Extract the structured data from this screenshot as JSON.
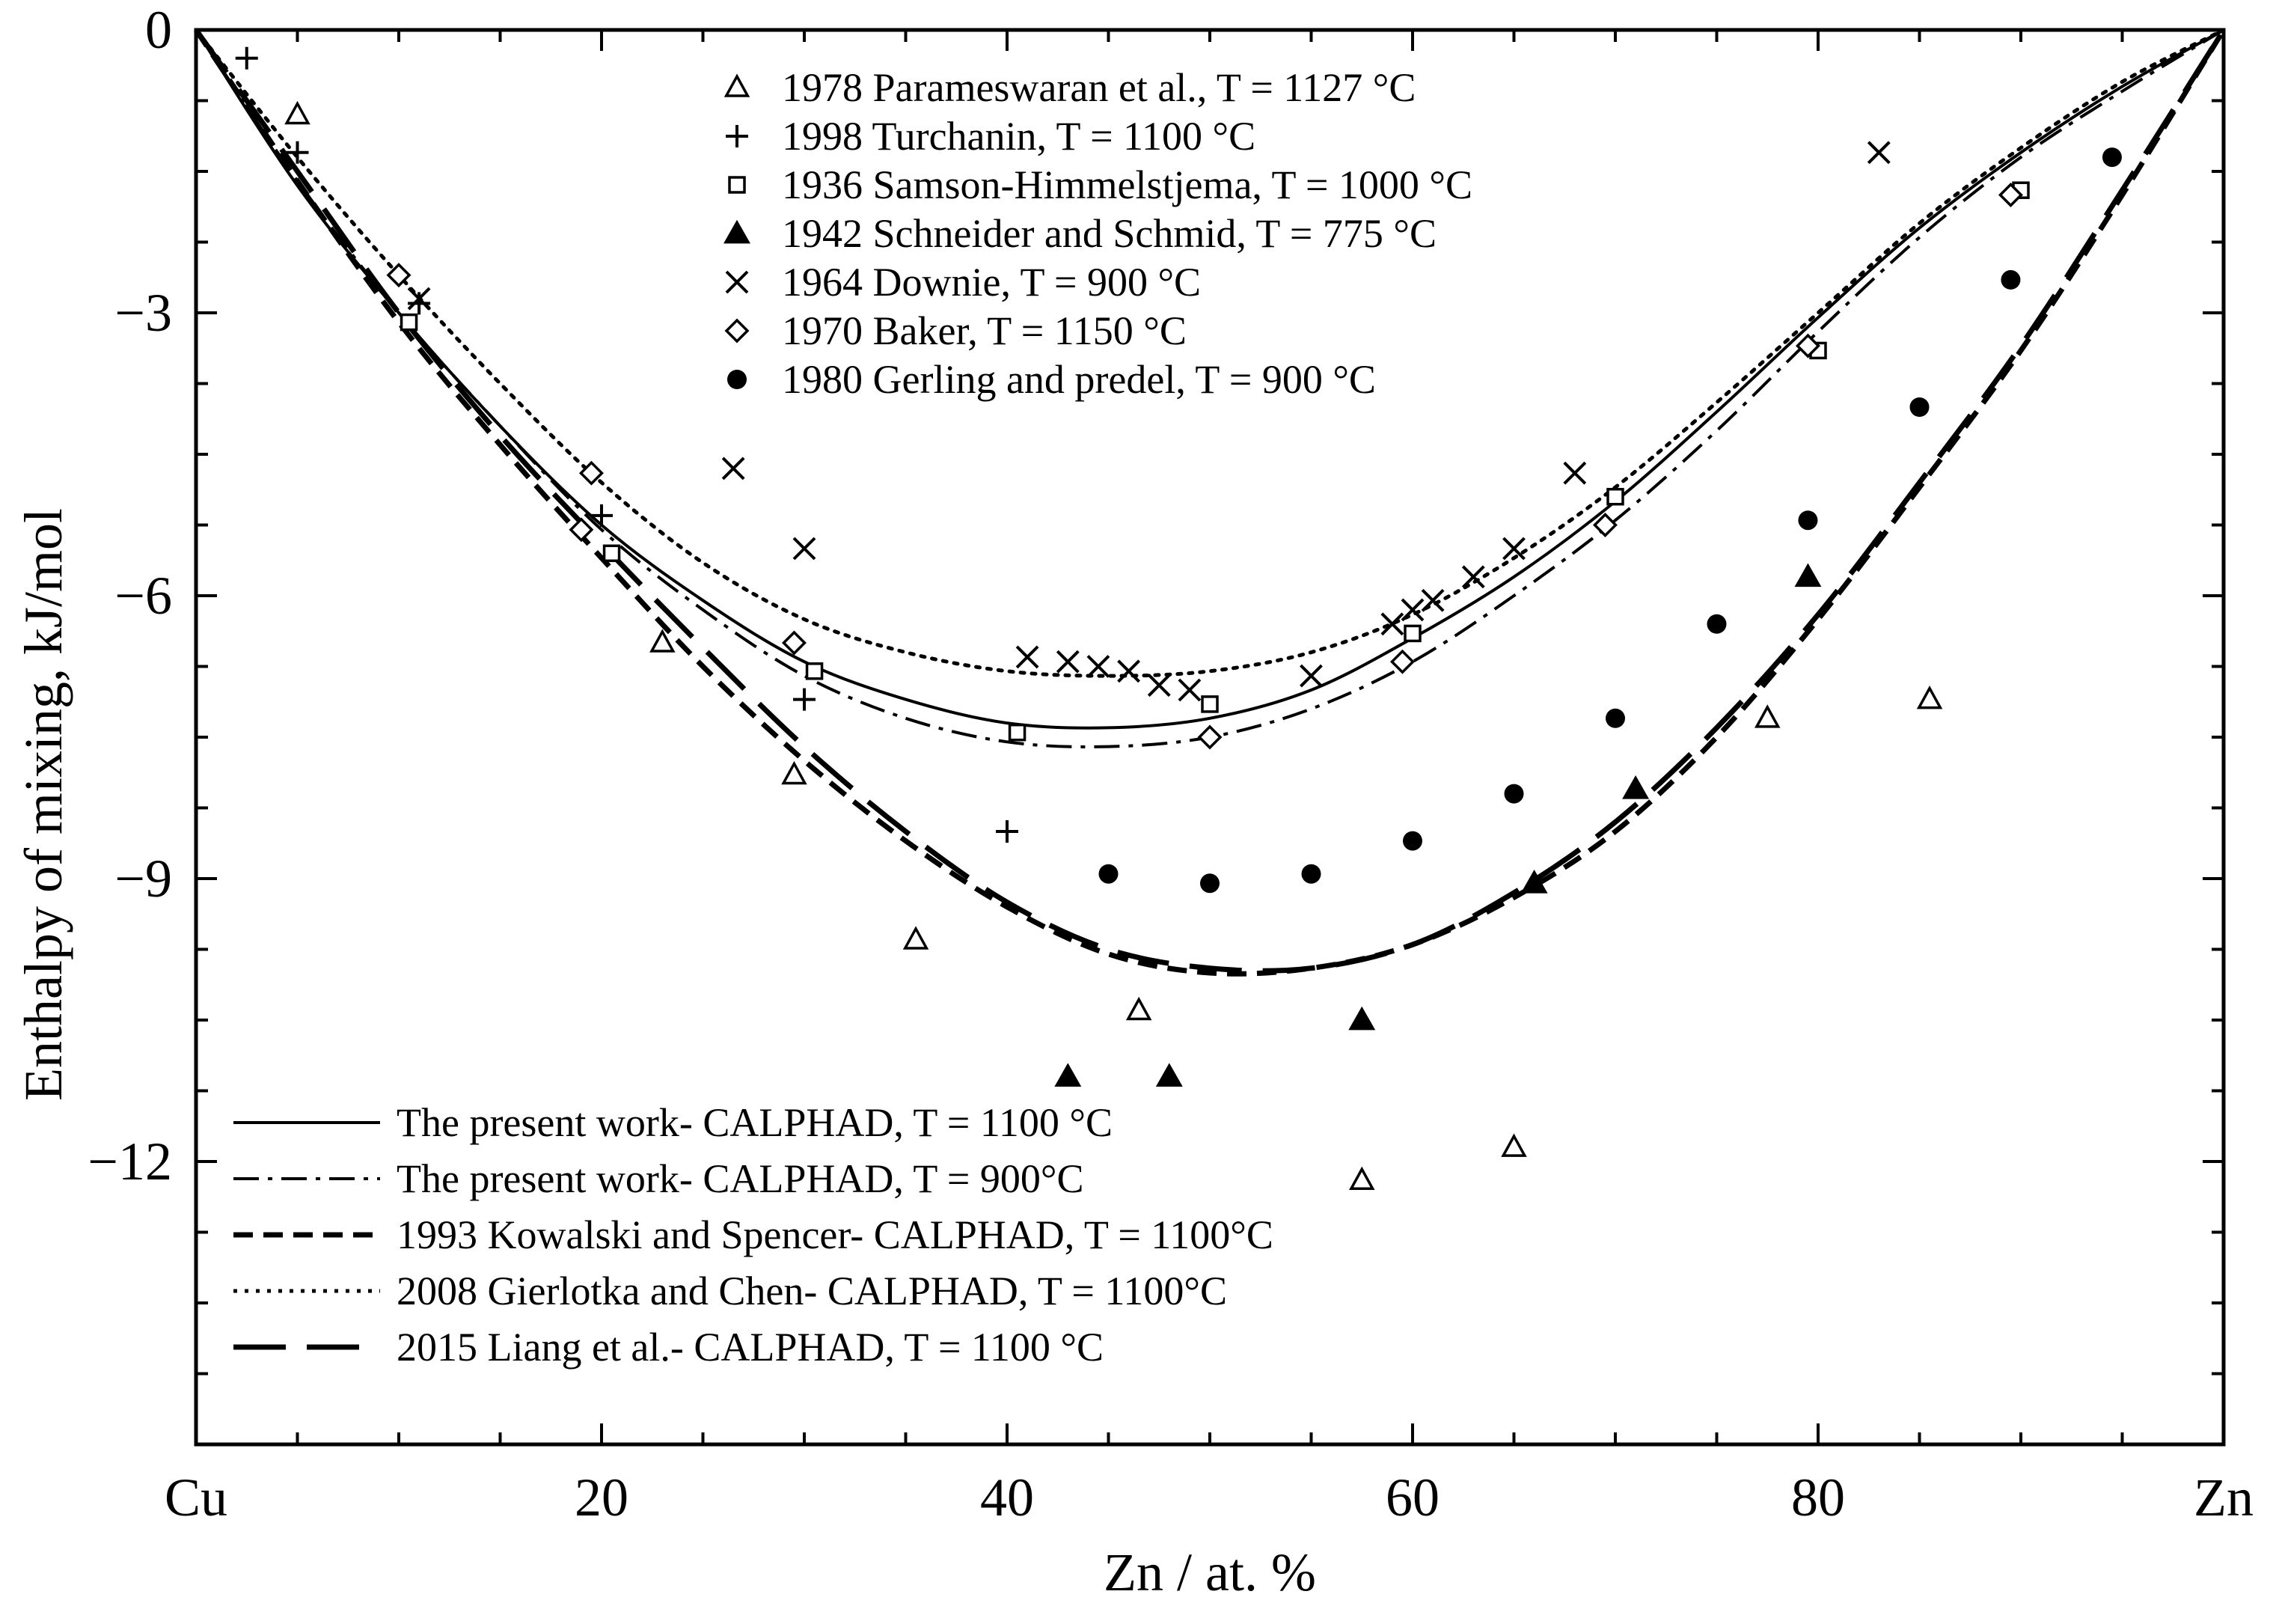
{
  "chart_data": {
    "type": "line",
    "title": "",
    "xlabel": "Zn / at. %",
    "ylabel": "Enthalpy of mixing, kJ/mol",
    "xlim": [
      0,
      100
    ],
    "ylim": [
      -15,
      0
    ],
    "x_ticks": [
      {
        "value": 0,
        "label": "Cu"
      },
      {
        "value": 20,
        "label": "20"
      },
      {
        "value": 40,
        "label": "40"
      },
      {
        "value": 60,
        "label": "60"
      },
      {
        "value": 80,
        "label": "80"
      },
      {
        "value": 100,
        "label": "Zn"
      }
    ],
    "y_ticks": [
      {
        "value": 0,
        "label": "0"
      },
      {
        "value": -3,
        "label": "−3"
      },
      {
        "value": -6,
        "label": "−6"
      },
      {
        "value": -9,
        "label": "−9"
      },
      {
        "value": -12,
        "label": "−12"
      }
    ],
    "curves": [
      {
        "name": "The present work- CALPHAD, T = 1100 °C",
        "style": "solid",
        "x": [
          0,
          5,
          10,
          15,
          20,
          25,
          30,
          35,
          40,
          45,
          50,
          55,
          60,
          65,
          70,
          75,
          80,
          85,
          90,
          95,
          100
        ],
        "y": [
          0,
          -1.65,
          -3.0,
          -4.2,
          -5.25,
          -6.05,
          -6.7,
          -7.1,
          -7.35,
          -7.4,
          -7.3,
          -7.0,
          -6.45,
          -5.8,
          -5.0,
          -4.05,
          -3.05,
          -2.1,
          -1.3,
          -0.6,
          0
        ]
      },
      {
        "name": "The present work- CALPHAD, T = 900°C",
        "style": "dashdot",
        "x": [
          0,
          5,
          10,
          15,
          20,
          25,
          30,
          35,
          40,
          45,
          50,
          55,
          60,
          65,
          70,
          75,
          80,
          85,
          90,
          95,
          100
        ],
        "y": [
          0,
          -1.6,
          -3.0,
          -4.2,
          -5.3,
          -6.15,
          -6.85,
          -7.3,
          -7.55,
          -7.6,
          -7.5,
          -7.2,
          -6.7,
          -6.0,
          -5.2,
          -4.25,
          -3.2,
          -2.2,
          -1.35,
          -0.65,
          0
        ]
      },
      {
        "name": "1993 Kowalski and Spencer- CALPHAD, T = 1100°C",
        "style": "dashed",
        "x": [
          0,
          5,
          10,
          15,
          20,
          25,
          30,
          35,
          40,
          45,
          50,
          55,
          60,
          65,
          70,
          75,
          80,
          85,
          90,
          95,
          100
        ],
        "y": [
          0,
          -1.6,
          -3.1,
          -4.4,
          -5.6,
          -6.75,
          -7.75,
          -8.6,
          -9.3,
          -9.8,
          -10.0,
          -9.95,
          -9.7,
          -9.2,
          -8.5,
          -7.5,
          -6.25,
          -4.85,
          -3.4,
          -1.75,
          0
        ]
      },
      {
        "name": "2008 Gierlotka and Chen- CALPHAD, T = 1100°C",
        "style": "dotted",
        "x": [
          0,
          5,
          10,
          15,
          20,
          25,
          30,
          35,
          40,
          45,
          50,
          55,
          60,
          65,
          70,
          75,
          80,
          85,
          90,
          95,
          100
        ],
        "y": [
          0,
          -1.35,
          -2.6,
          -3.75,
          -4.8,
          -5.65,
          -6.25,
          -6.6,
          -6.8,
          -6.85,
          -6.8,
          -6.6,
          -6.2,
          -5.6,
          -4.85,
          -3.95,
          -3.0,
          -2.05,
          -1.25,
          -0.55,
          0
        ]
      },
      {
        "name": "2015 Liang et al.- CALPHAD, T = 1100 °C",
        "style": "longdash",
        "x": [
          0,
          5,
          10,
          15,
          20,
          25,
          30,
          35,
          40,
          45,
          50,
          55,
          60,
          65,
          70,
          75,
          80,
          85,
          90,
          95,
          100
        ],
        "y": [
          0,
          -1.5,
          -3.0,
          -4.3,
          -5.45,
          -6.55,
          -7.6,
          -8.5,
          -9.25,
          -9.75,
          -9.95,
          -9.95,
          -9.7,
          -9.15,
          -8.4,
          -7.4,
          -6.2,
          -4.8,
          -3.35,
          -1.7,
          0
        ]
      }
    ],
    "series": [
      {
        "name": "1978 Parameswaran et al., T = 1127 °C",
        "marker": "triangle-open",
        "points": [
          [
            5,
            -0.9
          ],
          [
            23,
            -6.5
          ],
          [
            29.5,
            -7.9
          ],
          [
            35.5,
            -9.65
          ],
          [
            46.5,
            -10.4
          ],
          [
            57.5,
            -12.2
          ],
          [
            65,
            -11.85
          ],
          [
            77.5,
            -7.3
          ],
          [
            85.5,
            -7.1
          ]
        ]
      },
      {
        "name": "1998 Turchanin,  T = 1100 °C",
        "marker": "plus",
        "points": [
          [
            2.5,
            -0.3
          ],
          [
            5,
            -1.3
          ],
          [
            11,
            -2.9
          ],
          [
            20,
            -5.15
          ],
          [
            30,
            -7.1
          ],
          [
            40,
            -8.5
          ]
        ]
      },
      {
        "name": "1936 Samson-Himmelstjema, T = 1000 °C",
        "marker": "square-open",
        "points": [
          [
            10.5,
            -3.1
          ],
          [
            20.5,
            -5.55
          ],
          [
            30.5,
            -6.8
          ],
          [
            40.5,
            -7.45
          ],
          [
            50,
            -7.15
          ],
          [
            60,
            -6.4
          ],
          [
            70,
            -4.95
          ],
          [
            80,
            -3.4
          ],
          [
            90,
            -1.7
          ]
        ]
      },
      {
        "name": "1942 Schneider and Schmid, T = 775 °C",
        "marker": "triangle-filled",
        "points": [
          [
            43,
            -11.1
          ],
          [
            48,
            -11.1
          ],
          [
            57.5,
            -10.5
          ],
          [
            66,
            -9.05
          ],
          [
            71,
            -8.05
          ],
          [
            79.5,
            -5.8
          ]
        ]
      },
      {
        "name": "1964 Downie, T = 900  °C",
        "marker": "cross",
        "points": [
          [
            11,
            -2.85
          ],
          [
            26.5,
            -4.65
          ],
          [
            30,
            -5.5
          ],
          [
            41,
            -6.65
          ],
          [
            43,
            -6.7
          ],
          [
            44.5,
            -6.75
          ],
          [
            46,
            -6.8
          ],
          [
            47.5,
            -6.95
          ],
          [
            49,
            -7.0
          ],
          [
            55,
            -6.85
          ],
          [
            59,
            -6.3
          ],
          [
            60,
            -6.15
          ],
          [
            61,
            -6.05
          ],
          [
            63,
            -5.8
          ],
          [
            65,
            -5.5
          ],
          [
            68,
            -4.7
          ],
          [
            83,
            -1.3
          ]
        ]
      },
      {
        "name": "1970 Baker, T = 1150 °C",
        "marker": "diamond-open",
        "points": [
          [
            10,
            -2.6
          ],
          [
            19,
            -5.3
          ],
          [
            19.5,
            -4.7
          ],
          [
            29.5,
            -6.5
          ],
          [
            50,
            -7.5
          ],
          [
            59.5,
            -6.7
          ],
          [
            69.5,
            -5.25
          ],
          [
            79.5,
            -3.35
          ],
          [
            89.5,
            -1.75
          ]
        ]
      },
      {
        "name": "1980 Gerling and predel, T = 900 °C",
        "marker": "circle-filled",
        "points": [
          [
            45,
            -8.95
          ],
          [
            50,
            -9.05
          ],
          [
            55,
            -8.95
          ],
          [
            60,
            -8.6
          ],
          [
            65,
            -8.1
          ],
          [
            70,
            -7.3
          ],
          [
            75,
            -6.3
          ],
          [
            79.5,
            -5.2
          ],
          [
            85,
            -4.0
          ],
          [
            89.5,
            -2.65
          ],
          [
            94.5,
            -1.35
          ]
        ]
      }
    ],
    "grid": false,
    "legend_placement": "top-center and bottom-left"
  },
  "legend": {
    "markers": [
      {
        "label": "1978 Parameswaran et al., T = 1127 °C",
        "marker": "triangle-open"
      },
      {
        "label": "1998 Turchanin,  T = 1100 °C",
        "marker": "plus"
      },
      {
        "label": "1936 Samson-Himmelstjema, T = 1000 °C",
        "marker": "square-open"
      },
      {
        "label": "1942 Schneider and Schmid, T = 775 °C",
        "marker": "triangle-filled"
      },
      {
        "label": "1964 Downie, T = 900  °C",
        "marker": "cross"
      },
      {
        "label": "1970 Baker, T = 1150 °C",
        "marker": "diamond-open"
      },
      {
        "label": "1980 Gerling and predel, T = 900 °C",
        "marker": "circle-filled"
      }
    ],
    "lines": [
      {
        "label": "The present work- CALPHAD, T = 1100 °C",
        "style": "solid"
      },
      {
        "label": " The present work- CALPHAD, T = 900°C",
        "style": "dashdot"
      },
      {
        "label": "1993 Kowalski and Spencer- CALPHAD, T = 1100°C",
        "style": "dashed"
      },
      {
        "label": "2008 Gierlotka and Chen- CALPHAD, T = 1100°C",
        "style": "dotted"
      },
      {
        "label": "2015 Liang et al.- CALPHAD, T = 1100 °C",
        "style": "longdash"
      }
    ]
  }
}
